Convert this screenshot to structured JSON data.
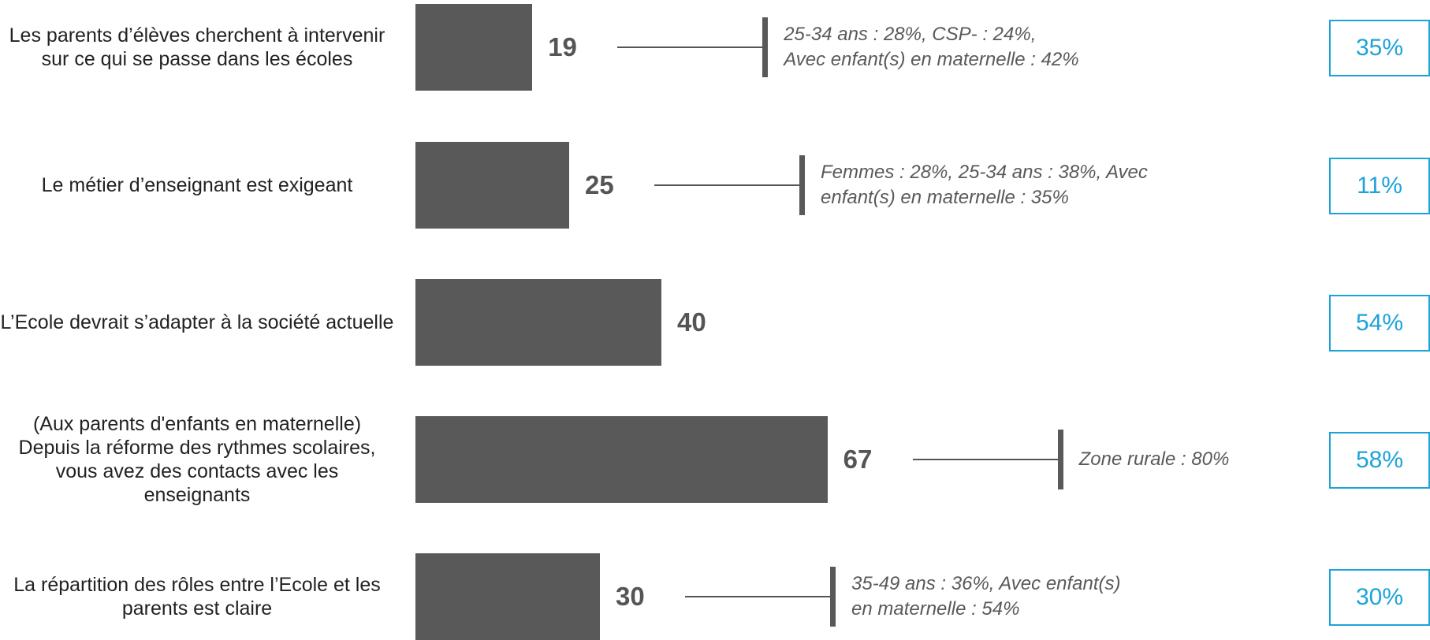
{
  "accent_color": "#1ea3d9",
  "bar_color": "#595959",
  "chart_data": {
    "type": "bar",
    "orientation": "horizontal",
    "categories": [
      "Les parents d’élèves cherchent à intervenir sur ce qui se passe dans les écoles",
      "Le métier d’enseignant est exigeant",
      "L’Ecole devrait s’adapter à la société actuelle",
      "(Aux parents d'enfants en maternelle) Depuis la réforme des rythmes scolaires, vous avez des contacts avec les enseignants",
      "La répartition des rôles entre l’Ecole et les parents est claire"
    ],
    "values": [
      19,
      25,
      40,
      67,
      30
    ],
    "value_labels": [
      "19",
      "25",
      "40",
      "67",
      "30"
    ],
    "xlim": [
      0,
      100
    ],
    "notes": [
      "25-34 ans : 28%, CSP- : 24%,\nAvec enfant(s) en maternelle : 42%",
      "Femmes : 28%, 25-34 ans : 38%, Avec\nenfant(s) en maternelle : 35%",
      "",
      "Zone rurale : 80%",
      "35-49 ans : 36%, Avec enfant(s)\nen maternelle : 54%"
    ],
    "comparison_values": [
      "35%",
      "11%",
      "54%",
      "58%",
      "30%"
    ],
    "title": "",
    "xlabel": "",
    "ylabel": "",
    "grid": false,
    "legend": "none"
  }
}
